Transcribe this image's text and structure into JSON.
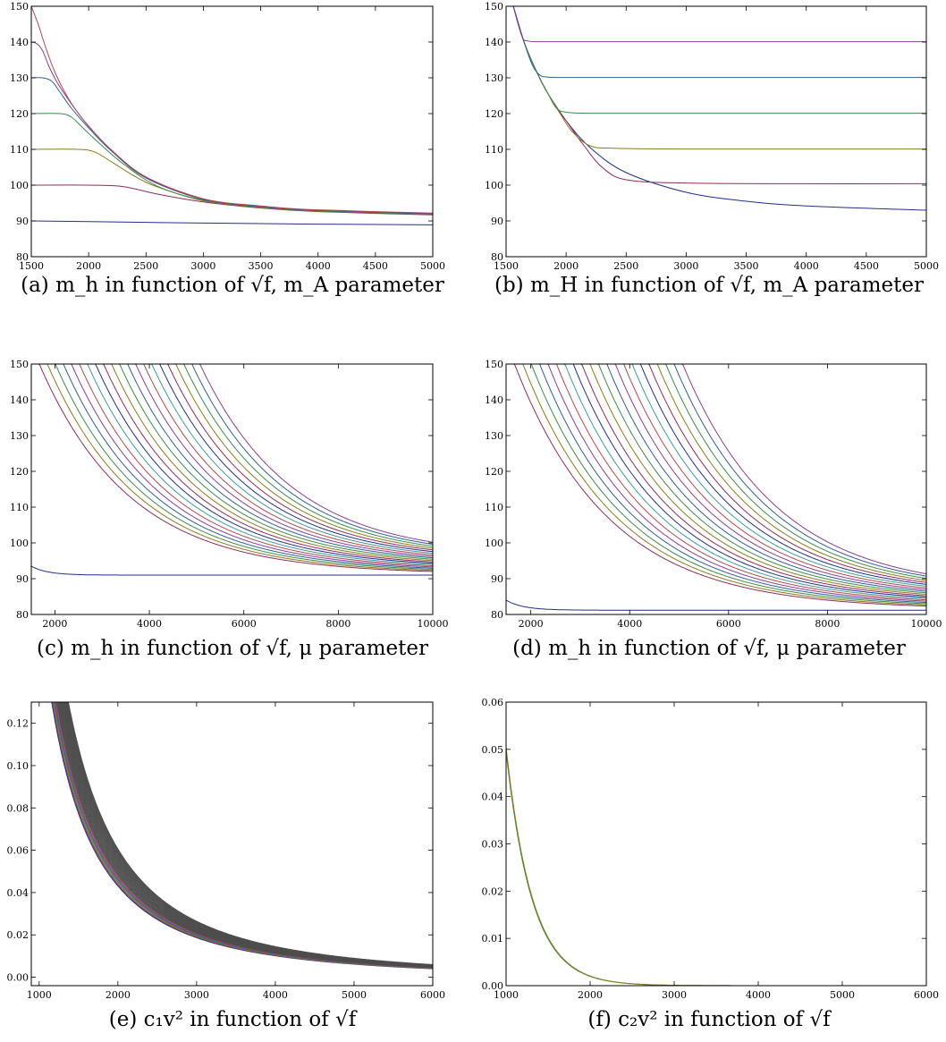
{
  "palette": [
    "#1f2f8c",
    "#8e2b5a",
    "#8a7a1c",
    "#3c8a4a",
    "#2e5f93",
    "#8a3c96",
    "#b04a4a",
    "#3f9a9a"
  ],
  "panels": [
    {
      "caption": "(a) m_h in function of √f, m_A parameter"
    },
    {
      "caption": "(b) m_H in function of √f, m_A parameter"
    },
    {
      "caption": "(c) m_h in function of √f, μ parameter"
    },
    {
      "caption": "(d) m_h in function of √f, μ parameter"
    },
    {
      "caption": "(e) c₁v² in function of √f"
    },
    {
      "caption": "(f) c₂v² in function of √f"
    }
  ],
  "chart_data": [
    {
      "type": "line",
      "xlim": [
        1500,
        5000
      ],
      "ylim": [
        80,
        150
      ],
      "xticks": [
        "1500",
        "2000",
        "2500",
        "3000",
        "3500",
        "4000",
        "4500",
        "5000"
      ],
      "yticks": [
        "80",
        "90",
        "100",
        "110",
        "120",
        "130",
        "140",
        "150"
      ],
      "series": [
        {
          "color": "#1f2f8c",
          "x": [
            1500,
            2000,
            3000,
            4000,
            5000
          ],
          "y": [
            90,
            89.8,
            89.4,
            89.1,
            88.9
          ]
        },
        {
          "color": "#8e2b5a",
          "x": [
            1500,
            2000,
            2300,
            2600,
            3000,
            3500,
            4000,
            5000
          ],
          "y": [
            100,
            100,
            99.6,
            97.5,
            95.3,
            93.6,
            92.6,
            91.7
          ]
        },
        {
          "color": "#8a7a1c",
          "x": [
            1500,
            1900,
            2050,
            2200,
            2400,
            2600,
            3000,
            3500,
            4000,
            5000
          ],
          "y": [
            110,
            110,
            109.3,
            106.5,
            102.5,
            99.5,
            95.6,
            93.7,
            92.7,
            91.8
          ]
        },
        {
          "color": "#3c8a4a",
          "x": [
            1500,
            1750,
            1850,
            1950,
            2100,
            2300,
            2600,
            3000,
            3500,
            4000,
            5000
          ],
          "y": [
            120,
            120,
            119,
            116,
            111.5,
            106,
            99.7,
            95.8,
            93.8,
            92.8,
            91.9
          ]
        },
        {
          "color": "#2e5f93",
          "x": [
            1500,
            1600,
            1680,
            1750,
            1850,
            2000,
            2200,
            2500,
            3000,
            3500,
            4000,
            5000
          ],
          "y": [
            130,
            130,
            129,
            126,
            121.5,
            116,
            109.5,
            102,
            96,
            94,
            92.9,
            92
          ]
        },
        {
          "color": "#8a3c96",
          "x": [
            1500,
            1550,
            1600,
            1650,
            1720,
            1800,
            1900,
            2000,
            2200,
            2500,
            3000,
            3500,
            4000,
            5000
          ],
          "y": [
            140,
            139.5,
            137.5,
            133.5,
            129,
            125,
            120.5,
            116.5,
            109.7,
            102.2,
            96.1,
            94.1,
            93,
            92.1
          ]
        },
        {
          "color": "#b04a4a",
          "x": [
            1500,
            1560,
            1620,
            1700,
            1800,
            1900,
            2000,
            2200,
            2500,
            3000,
            3500,
            4000,
            5000
          ],
          "y": [
            150,
            145,
            139,
            132,
            125.5,
            120.5,
            116.5,
            109.8,
            102.3,
            96.2,
            94.2,
            93.1,
            92.2
          ]
        }
      ]
    },
    {
      "type": "line",
      "xlim": [
        1500,
        5000
      ],
      "ylim": [
        80,
        150
      ],
      "xticks": [
        "1500",
        "2000",
        "2500",
        "3000",
        "3500",
        "4000",
        "4500",
        "5000"
      ],
      "yticks": [
        "80",
        "90",
        "100",
        "110",
        "120",
        "130",
        "140",
        "150"
      ],
      "series": [
        {
          "color": "#1f2f8c",
          "x": [
            1560,
            1650,
            1750,
            1850,
            2000,
            2200,
            2500,
            3000,
            3500,
            4000,
            5000
          ],
          "y": [
            150,
            140,
            132,
            125.5,
            118,
            110.5,
            103.5,
            98,
            95.5,
            94.2,
            93
          ]
        },
        {
          "color": "#8e2b5a",
          "x": [
            1560,
            1650,
            1750,
            1850,
            2000,
            2150,
            2300,
            2500,
            3000,
            4000,
            5000
          ],
          "y": [
            150,
            140,
            132,
            125.5,
            118,
            111,
            105,
            101.5,
            100.6,
            100.4,
            100.4
          ]
        },
        {
          "color": "#8a7a1c",
          "x": [
            1560,
            1650,
            1750,
            1850,
            1950,
            2050,
            2200,
            2400,
            3000,
            5000
          ],
          "y": [
            150,
            140,
            132,
            125.5,
            120,
            115,
            111,
            110.3,
            110.1,
            110.1
          ]
        },
        {
          "color": "#3c8a4a",
          "x": [
            1560,
            1650,
            1750,
            1850,
            1920,
            2000,
            2200,
            3000,
            5000
          ],
          "y": [
            150,
            140,
            132,
            125.5,
            121.5,
            120.4,
            120.1,
            120.1,
            120.1
          ]
        },
        {
          "color": "#2e5f93",
          "x": [
            1560,
            1650,
            1720,
            1780,
            1850,
            2000,
            3000,
            5000
          ],
          "y": [
            150,
            140,
            133.5,
            130.8,
            130.2,
            130.1,
            130.1,
            130.1
          ]
        },
        {
          "color": "#8a3c96",
          "x": [
            1560,
            1600,
            1640,
            1680,
            1750,
            2000,
            3000,
            5000
          ],
          "y": [
            150,
            145,
            141,
            140.3,
            140.1,
            140.1,
            140.1,
            140.1
          ]
        }
      ]
    },
    {
      "type": "line",
      "xlim": [
        1500,
        10000
      ],
      "ylim": [
        80,
        150
      ],
      "xticks": [
        "2000",
        "4000",
        "6000",
        "8000",
        "10000"
      ],
      "yticks": [
        "80",
        "90",
        "100",
        "110",
        "120",
        "130",
        "140",
        "150"
      ],
      "family": {
        "count": 22,
        "start_x0": 1500,
        "step_x0": 170,
        "start_y0": 93.5,
        "asym_start": 91,
        "asym_step": 0.24
      }
    },
    {
      "type": "line",
      "xlim": [
        1500,
        10000
      ],
      "ylim": [
        80,
        150
      ],
      "xticks": [
        "2000",
        "4000",
        "6000",
        "8000",
        "10000"
      ],
      "yticks": [
        "80",
        "90",
        "100",
        "110",
        "120",
        "130",
        "140",
        "150"
      ],
      "family": {
        "count": 22,
        "start_x0": 1500,
        "step_x0": 170,
        "start_y0": 84,
        "asym_start": 81.2,
        "asym_step": 0.25
      }
    },
    {
      "type": "line",
      "xlim": [
        900,
        6000
      ],
      "ylim": [
        -0.004,
        0.13
      ],
      "xticks": [
        "1000",
        "2000",
        "3000",
        "4000",
        "5000",
        "6000"
      ],
      "yticks": [
        "0.00",
        "0.02",
        "0.04",
        "0.06",
        "0.08",
        "0.10",
        "0.12"
      ],
      "ytick_values": [
        0,
        0.02,
        0.04,
        0.06,
        0.08,
        0.1,
        0.12
      ],
      "power_family": {
        "count": 26,
        "k_start": 176000,
        "k_step": 2800
      }
    },
    {
      "type": "line",
      "xlim": [
        1000,
        6000
      ],
      "ylim": [
        0,
        0.06
      ],
      "xticks": [
        "1000",
        "2000",
        "3000",
        "4000",
        "5000",
        "6000"
      ],
      "yticks": [
        "0.00",
        "0.01",
        "0.02",
        "0.03",
        "0.04",
        "0.05",
        "0.06"
      ],
      "ytick_values": [
        0,
        0.01,
        0.02,
        0.03,
        0.04,
        0.05,
        0.06
      ],
      "exp_series": [
        {
          "color": "#3c8a4a",
          "a": 0.0495,
          "tau": 310
        },
        {
          "color": "#8a7a1c",
          "a": 0.0505,
          "tau": 312
        }
      ]
    }
  ]
}
